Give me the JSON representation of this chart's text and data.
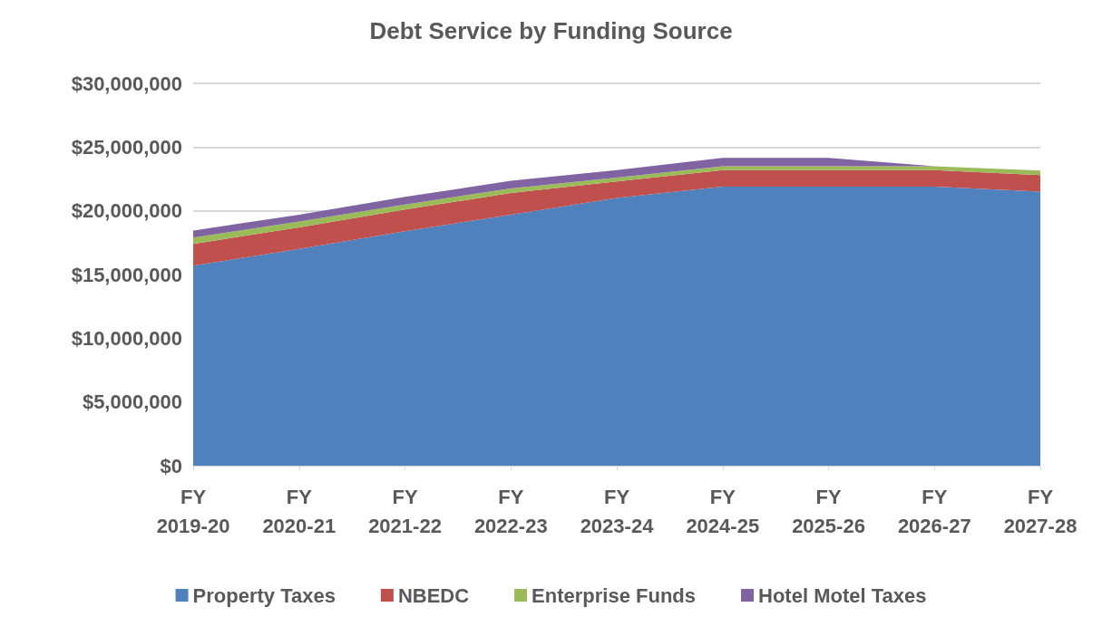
{
  "chart_data": {
    "type": "area",
    "title": "Debt Service by Funding Source",
    "stacked": true,
    "categories": [
      "FY 2019-20",
      "FY 2020-21",
      "FY 2021-22",
      "FY 2022-23",
      "FY 2023-24",
      "FY 2024-25",
      "FY 2025-26",
      "FY 2026-27",
      "FY 2027-28"
    ],
    "series": [
      {
        "name": "Property Taxes",
        "color": "#4f81bd",
        "values": [
          15700000,
          17000000,
          18400000,
          19700000,
          21000000,
          21900000,
          21900000,
          21900000,
          21500000
        ]
      },
      {
        "name": "NBEDC",
        "color": "#c0504d",
        "values": [
          1700000,
          1700000,
          1700000,
          1700000,
          1300000,
          1300000,
          1300000,
          1300000,
          1300000
        ]
      },
      {
        "name": "Enterprise Funds",
        "color": "#9bbb59",
        "values": [
          500000,
          450000,
          400000,
          350000,
          300000,
          300000,
          300000,
          300000,
          350000
        ]
      },
      {
        "name": "Hotel Motel Taxes",
        "color": "#8064a2",
        "values": [
          550000,
          550000,
          600000,
          600000,
          600000,
          650000,
          650000,
          0,
          0
        ]
      }
    ],
    "ylim": [
      0,
      30000000
    ],
    "yticks": [
      {
        "value": 0,
        "label": "$0"
      },
      {
        "value": 5000000,
        "label": "$5,000,000"
      },
      {
        "value": 10000000,
        "label": "$10,000,000"
      },
      {
        "value": 15000000,
        "label": "$15,000,000"
      },
      {
        "value": 20000000,
        "label": "$20,000,000"
      },
      {
        "value": 25000000,
        "label": "$25,000,000"
      },
      {
        "value": 30000000,
        "label": "$30,000,000"
      }
    ],
    "grid": "y",
    "legend": "bottom"
  }
}
